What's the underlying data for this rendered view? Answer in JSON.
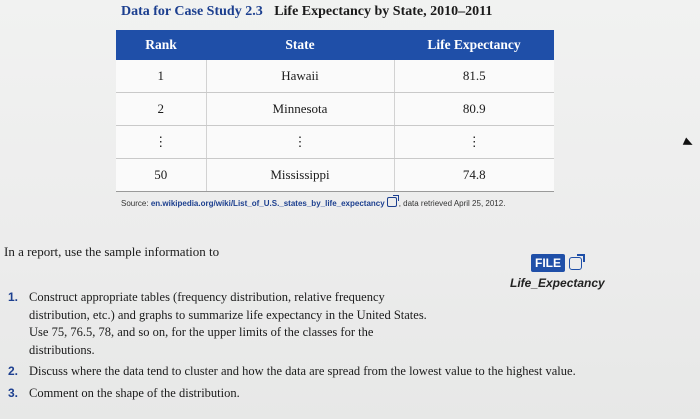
{
  "header": {
    "case_label": "Data for Case Study 2.3",
    "title": "Life Expectancy by State, 2010–2011"
  },
  "table": {
    "columns": [
      "Rank",
      "State",
      "Life Expectancy"
    ],
    "rows": [
      [
        "1",
        "Hawaii",
        "81.5"
      ],
      [
        "2",
        "Minnesota",
        "80.9"
      ],
      [
        "⋮",
        "⋮",
        "⋮"
      ],
      [
        "50",
        "Mississippi",
        "74.8"
      ]
    ]
  },
  "source": {
    "prefix": "Source:",
    "url": "en.wikipedia.org/wiki/List_of_U.S._states_by_life_expectancy",
    "suffix": ", data retrieved April 25, 2012."
  },
  "intro": "In a report, use the sample information to",
  "file": {
    "label": "FILE",
    "name": "Life_Expectancy"
  },
  "items": [
    {
      "num": "1.",
      "text": "Construct appropriate tables (frequency distribution, relative frequency distribution, etc.) and graphs to summarize life expectancy in the United States. Use 75, 76.5, 78, and so on, for the upper limits of the classes for the distributions."
    },
    {
      "num": "2.",
      "text": "Discuss where the data tend to cluster and how the data are spread from the lowest value to the highest value."
    },
    {
      "num": "3.",
      "text": "Comment on the shape of the distribution."
    }
  ],
  "colors": {
    "accent": "#1f4fa8",
    "heading_blue": "#1c3f8f"
  }
}
